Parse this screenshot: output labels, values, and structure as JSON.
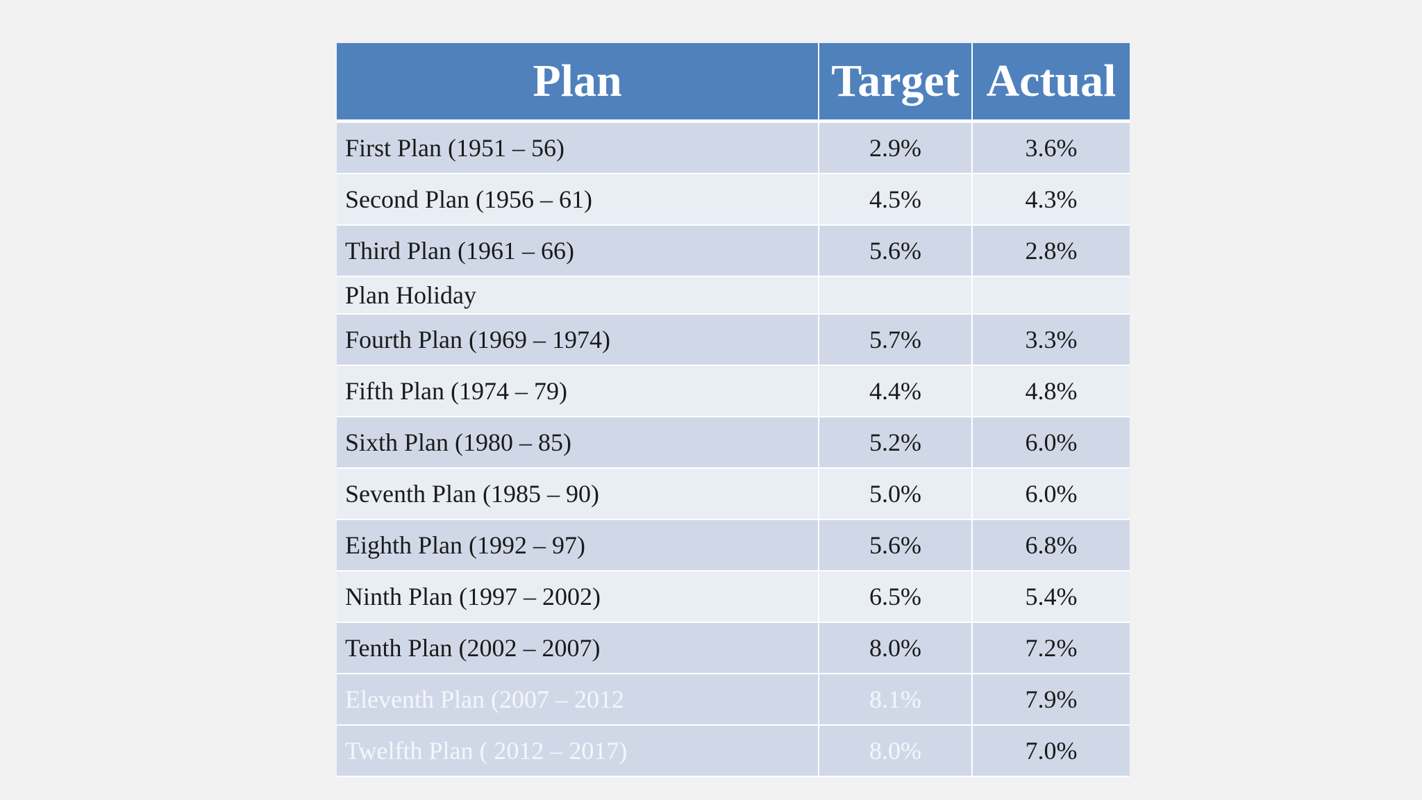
{
  "table": {
    "headers": {
      "plan": "Plan",
      "target": "Target",
      "actual": "Actual"
    },
    "rows": [
      {
        "plan": "First Plan (1951 – 56)",
        "target": "2.9%",
        "actual": "3.6%"
      },
      {
        "plan": "Second Plan (1956 – 61)",
        "target": "4.5%",
        "actual": "4.3%"
      },
      {
        "plan": "Third Plan (1961 – 66)",
        "target": "5.6%",
        "actual": "2.8%"
      },
      {
        "plan": "Plan Holiday",
        "target": "",
        "actual": ""
      },
      {
        "plan": "Fourth Plan (1969 – 1974)",
        "target": "5.7%",
        "actual": "3.3%"
      },
      {
        "plan": "Fifth Plan (1974 – 79)",
        "target": "4.4%",
        "actual": "4.8%"
      },
      {
        "plan": "Sixth Plan (1980 – 85)",
        "target": "5.2%",
        "actual": "6.0%"
      },
      {
        "plan": "Seventh Plan (1985 – 90)",
        "target": "5.0%",
        "actual": "6.0%"
      },
      {
        "plan": "Eighth Plan (1992 – 97)",
        "target": "5.6%",
        "actual": "6.8%"
      },
      {
        "plan": "Ninth Plan (1997 – 2002)",
        "target": "6.5%",
        "actual": "5.4%"
      },
      {
        "plan": "Tenth Plan (2002 – 2007)",
        "target": "8.0%",
        "actual": "7.2%"
      },
      {
        "plan": "Eleventh Plan (2007 – 2012",
        "target": "8.1%",
        "actual": "7.9%"
      },
      {
        "plan": "Twelfth Plan ( 2012 – 2017)",
        "target": "8.0%",
        "actual": "7.0%"
      }
    ]
  },
  "colors": {
    "header_bg": "#4f81bd",
    "row_odd_bg": "#d0d8e8",
    "row_even_bg": "#e9edf4",
    "faded_text": "#f4f6fa"
  }
}
